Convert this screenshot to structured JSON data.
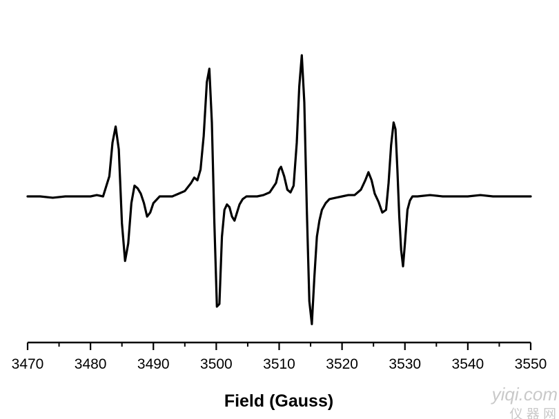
{
  "chart_data": {
    "type": "line",
    "title": "",
    "xlabel": "Field (Gauss)",
    "ylabel": "",
    "xlim": [
      3470,
      3550
    ],
    "ylim": [
      -1.0,
      1.0
    ],
    "xticks": [
      3470,
      3480,
      3490,
      3500,
      3510,
      3520,
      3530,
      3540,
      3550
    ],
    "grid": false,
    "legend": "none",
    "y_axis_shown": false,
    "series": [
      {
        "color": "#000000",
        "x": [
          3470,
          3472,
          3474,
          3476,
          3478,
          3480,
          3481,
          3482,
          3483,
          3483.5,
          3484.0,
          3484.5,
          3485.0,
          3485.5,
          3486.0,
          3486.5,
          3487.0,
          3487.5,
          3488.0,
          3488.5,
          3489.0,
          3489.5,
          3490.0,
          3491,
          3492,
          3493,
          3494,
          3495,
          3496,
          3496.5,
          3497,
          3497.5,
          3498,
          3498.5,
          3498.9,
          3499.3,
          3499.7,
          3500.1,
          3500.5,
          3500.9,
          3501.3,
          3501.7,
          3502.1,
          3502.5,
          3502.9,
          3503.3,
          3503.7,
          3504.2,
          3504.8,
          3505.5,
          3506.5,
          3507.5,
          3508.5,
          3509.5,
          3510.0,
          3510.3,
          3510.8,
          3511.3,
          3511.8,
          3512.3,
          3512.8,
          3513.2,
          3513.6,
          3514.0,
          3514.4,
          3514.8,
          3515.2,
          3515.6,
          3516.0,
          3516.4,
          3516.8,
          3517.4,
          3518.0,
          3519,
          3520,
          3521,
          3522,
          3523,
          3523.7,
          3524.2,
          3524.7,
          3525.2,
          3525.8,
          3526.4,
          3527.0,
          3527.4,
          3527.8,
          3528.2,
          3528.5,
          3528.8,
          3529.1,
          3529.4,
          3529.7,
          3530.0,
          3530.4,
          3530.8,
          3531.2,
          3531.6,
          3532,
          3534,
          3536,
          3538,
          3540,
          3542,
          3544,
          3546,
          3548,
          3550
        ],
        "y": [
          0.0,
          0.0,
          -0.01,
          0.0,
          0.0,
          0.0,
          0.01,
          0.0,
          0.15,
          0.4,
          0.52,
          0.35,
          -0.2,
          -0.48,
          -0.35,
          -0.05,
          0.08,
          0.06,
          0.02,
          -0.05,
          -0.15,
          -0.12,
          -0.05,
          0.0,
          0.0,
          0.0,
          0.02,
          0.04,
          0.1,
          0.14,
          0.12,
          0.2,
          0.45,
          0.85,
          0.95,
          0.55,
          -0.2,
          -0.82,
          -0.8,
          -0.3,
          -0.1,
          -0.06,
          -0.08,
          -0.15,
          -0.18,
          -0.12,
          -0.06,
          -0.02,
          0.0,
          0.0,
          0.0,
          0.01,
          0.03,
          0.1,
          0.2,
          0.22,
          0.15,
          0.05,
          0.03,
          0.08,
          0.4,
          0.82,
          1.05,
          0.7,
          -0.1,
          -0.78,
          -0.95,
          -0.6,
          -0.3,
          -0.18,
          -0.1,
          -0.05,
          -0.02,
          -0.01,
          0.0,
          0.01,
          0.01,
          0.05,
          0.12,
          0.18,
          0.12,
          0.02,
          -0.04,
          -0.12,
          -0.1,
          0.1,
          0.38,
          0.55,
          0.5,
          0.2,
          -0.15,
          -0.4,
          -0.52,
          -0.35,
          -0.1,
          -0.03,
          0.0,
          0.0,
          0.0,
          0.01,
          0.0,
          0.0,
          0.0,
          0.01,
          0.0,
          0.0,
          0.0,
          0.0
        ]
      }
    ]
  },
  "watermark": {
    "line1": "yiqi.com",
    "line2": "仪 器 网"
  }
}
